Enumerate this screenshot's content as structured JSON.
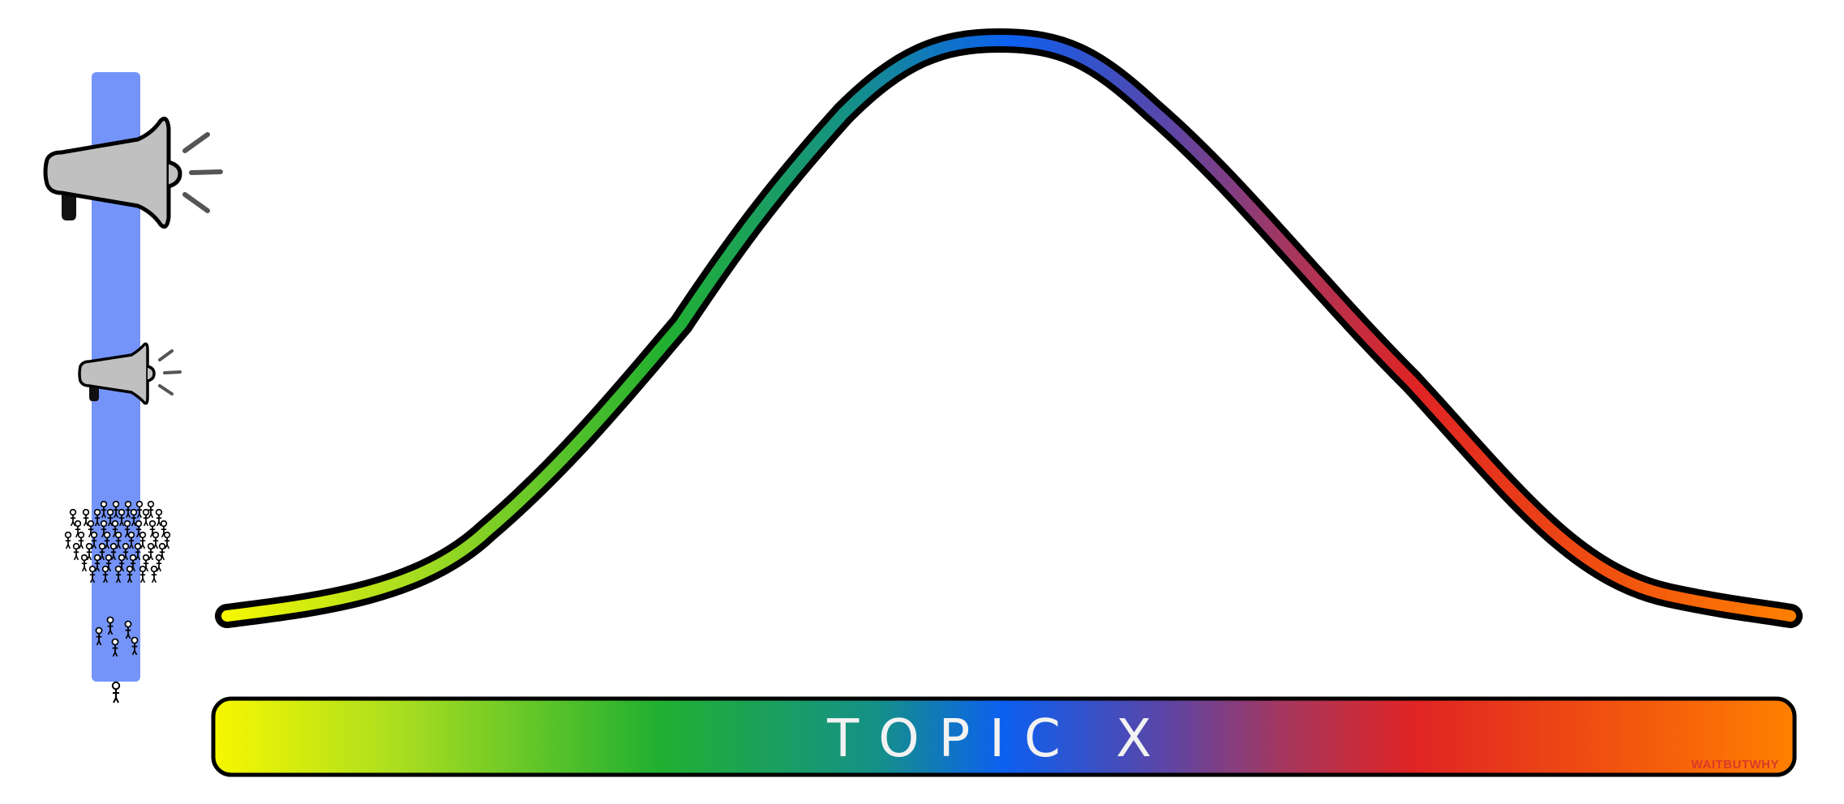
{
  "topic_bar": {
    "label": "TOPIC X"
  },
  "watermark": {
    "text": "WAITBUTWHY"
  },
  "colors": {
    "volume_column": "#7594fa",
    "outline": "#000000",
    "megaphone_fill": "#c0c0c0",
    "spectrum": [
      "#f7f700",
      "#a8dd20",
      "#22b030",
      "#0c60f0",
      "#5a46a8",
      "#a8365c",
      "#e02424",
      "#f06010",
      "#ff8000"
    ]
  },
  "icons": {
    "large_megaphone": "megaphone-icon",
    "small_megaphone": "megaphone-icon",
    "crowd": "stick-figure-crowd",
    "few_people": "stick-figure-group",
    "single_person": "stick-figure"
  }
}
